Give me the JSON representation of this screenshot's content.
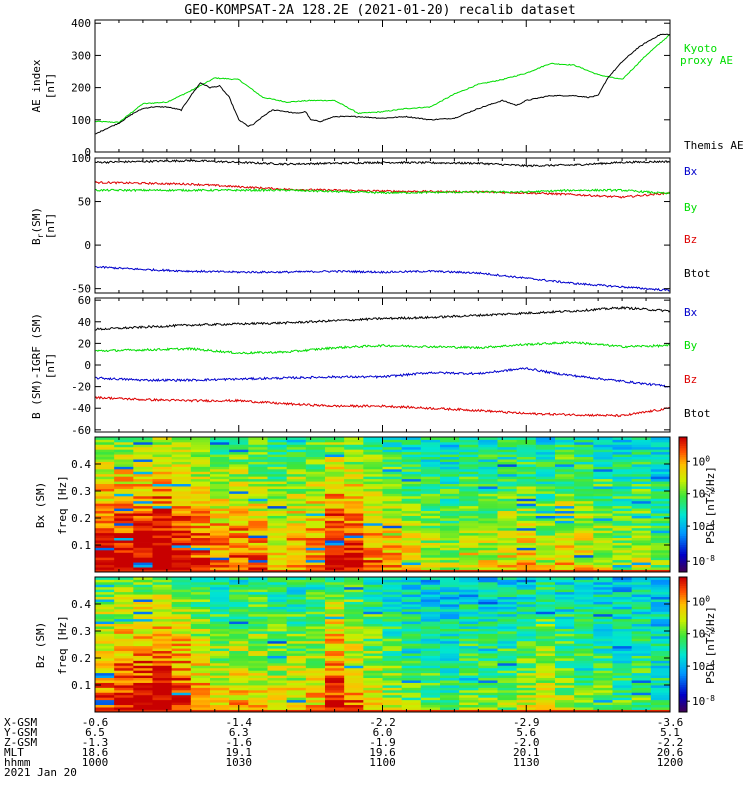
{
  "title": "GEO-KOMPSAT-2A 128.2E (2021-01-20) recalib dataset",
  "colors": {
    "black": "#000000",
    "green": "#00dd00",
    "red": "#dd0000",
    "blue": "#0000cc"
  },
  "chart_data": [
    {
      "type": "line",
      "id": "ae",
      "ylabel": "AE index",
      "yunit": "[nT]",
      "ylim": [
        0,
        410
      ],
      "yticks": [
        0,
        100,
        200,
        300,
        400
      ],
      "series": [
        {
          "name": "Kyoto proxy AE",
          "color": "#00dd00",
          "x": [
            0,
            5,
            10,
            15,
            20,
            25,
            30,
            35,
            40,
            45,
            50,
            55,
            60,
            65,
            70,
            75,
            80,
            85,
            90,
            95,
            100,
            105,
            110,
            115,
            120
          ],
          "y": [
            95,
            92,
            150,
            155,
            190,
            230,
            225,
            170,
            155,
            160,
            160,
            120,
            125,
            135,
            140,
            180,
            210,
            225,
            245,
            275,
            270,
            240,
            225,
            300,
            365
          ]
        },
        {
          "name": "Themis AE",
          "color": "#000000",
          "x": [
            0,
            2,
            5,
            8,
            10,
            12,
            15,
            18,
            20,
            22,
            24,
            26,
            28,
            30,
            32,
            33,
            35,
            37,
            38,
            40,
            42,
            44,
            45,
            47,
            50,
            55,
            60,
            65,
            70,
            75,
            80,
            85,
            88,
            90,
            95,
            100,
            103,
            105,
            107,
            110,
            113,
            115,
            118,
            120
          ],
          "y": [
            55,
            70,
            90,
            120,
            135,
            140,
            140,
            130,
            175,
            215,
            200,
            205,
            170,
            100,
            80,
            85,
            110,
            130,
            130,
            125,
            120,
            125,
            100,
            95,
            110,
            110,
            105,
            110,
            100,
            105,
            135,
            160,
            145,
            160,
            175,
            175,
            170,
            175,
            230,
            280,
            320,
            340,
            365,
            365
          ]
        }
      ]
    },
    {
      "type": "line",
      "id": "bsm",
      "ylabel": "B (SM)",
      "ylabel_sub": "r",
      "yunit": "[nT]",
      "ylim": [
        -55,
        100
      ],
      "yticks": [
        -50,
        0,
        50,
        100
      ],
      "legend": [
        {
          "label": "Bx",
          "color": "#0000cc"
        },
        {
          "label": "By",
          "color": "#00dd00"
        },
        {
          "label": "Bz",
          "color": "#dd0000"
        },
        {
          "label": "Btot",
          "color": "#000000"
        }
      ],
      "series": [
        {
          "name": "Black",
          "color": "#000000",
          "x": [
            0,
            20,
            40,
            60,
            80,
            90,
            100,
            110,
            120
          ],
          "y": [
            95,
            97,
            93,
            95,
            94,
            91,
            92,
            95,
            96
          ]
        },
        {
          "name": "Red",
          "color": "#dd0000",
          "x": [
            0,
            20,
            40,
            60,
            80,
            90,
            100,
            110,
            120
          ],
          "y": [
            72,
            70,
            64,
            62,
            61,
            60,
            58,
            55,
            60
          ]
        },
        {
          "name": "Green",
          "color": "#00dd00",
          "x": [
            0,
            20,
            40,
            60,
            80,
            90,
            100,
            110,
            120
          ],
          "y": [
            63,
            63,
            63,
            60,
            61,
            61,
            63,
            63,
            59
          ]
        },
        {
          "name": "Blue",
          "color": "#0000cc",
          "x": [
            0,
            10,
            20,
            30,
            40,
            50,
            60,
            70,
            80,
            90,
            100,
            110,
            120
          ],
          "y": [
            -25,
            -28,
            -30,
            -31,
            -31,
            -30,
            -31,
            -30,
            -32,
            -38,
            -44,
            -48,
            -52
          ]
        }
      ]
    },
    {
      "type": "line",
      "id": "bres",
      "ylabel": "B (SM)-IGRF (SM)",
      "yunit": "[nT]",
      "ylim": [
        -62,
        62
      ],
      "yticks": [
        -60,
        -40,
        -20,
        0,
        20,
        40,
        60
      ],
      "legend": [
        {
          "label": "Bx",
          "color": "#0000cc"
        },
        {
          "label": "By",
          "color": "#00dd00"
        },
        {
          "label": "Bz",
          "color": "#dd0000"
        },
        {
          "label": "Btot",
          "color": "#000000"
        }
      ],
      "series": [
        {
          "name": "Black",
          "color": "#000000",
          "x": [
            0,
            10,
            20,
            30,
            40,
            50,
            60,
            70,
            80,
            90,
            100,
            110,
            120
          ],
          "y": [
            33,
            35,
            37,
            38,
            39,
            41,
            43,
            44,
            46,
            48,
            50,
            53,
            50
          ]
        },
        {
          "name": "Green",
          "color": "#00dd00",
          "x": [
            0,
            10,
            20,
            30,
            40,
            50,
            60,
            70,
            80,
            90,
            100,
            110,
            120
          ],
          "y": [
            13,
            14,
            15,
            11,
            12,
            16,
            18,
            17,
            16,
            19,
            21,
            17,
            18
          ]
        },
        {
          "name": "Blue",
          "color": "#0000cc",
          "x": [
            0,
            10,
            20,
            30,
            40,
            50,
            60,
            70,
            80,
            90,
            95,
            100,
            110,
            120
          ],
          "y": [
            -12,
            -14,
            -14,
            -13,
            -12,
            -11,
            -11,
            -7,
            -8,
            -3,
            -7,
            -10,
            -15,
            -20
          ]
        },
        {
          "name": "Red",
          "color": "#dd0000",
          "x": [
            0,
            10,
            20,
            30,
            40,
            50,
            60,
            70,
            80,
            90,
            100,
            110,
            120
          ],
          "y": [
            -30,
            -32,
            -33,
            -33,
            -36,
            -38,
            -38,
            -40,
            -42,
            -45,
            -46,
            -47,
            -40
          ]
        }
      ]
    },
    {
      "type": "heatmap",
      "id": "specbx",
      "ylabel": "Bx (SM)",
      "ylabel2": "freq",
      "yunit": "[Hz]",
      "ylim": [
        0,
        0.5
      ],
      "yticks": [
        0.1,
        0.2,
        0.3,
        0.4
      ],
      "ncols": 30,
      "nrows": 55,
      "activity": [
        0.85,
        0.9,
        0.92,
        0.95,
        0.9,
        0.78,
        0.72,
        0.75,
        0.7,
        0.62,
        0.68,
        0.72,
        0.88,
        0.82,
        0.7,
        0.62,
        0.55,
        0.5,
        0.48,
        0.55,
        0.52,
        0.55,
        0.58,
        0.5,
        0.6,
        0.55,
        0.52,
        0.45,
        0.5,
        0.4
      ],
      "cbar_label": "PSD [nT^2/Hz]",
      "cbar_ticks": [
        "10^0",
        "10^-2",
        "10^-4",
        "10^-8"
      ]
    },
    {
      "type": "heatmap",
      "id": "specbz",
      "ylabel": "Bz (SM)",
      "ylabel2": "freq",
      "yunit": "[Hz]",
      "ylim": [
        0,
        0.5
      ],
      "yticks": [
        0.1,
        0.2,
        0.3,
        0.4
      ],
      "ncols": 30,
      "nrows": 55,
      "activity": [
        0.75,
        0.8,
        0.85,
        0.9,
        0.8,
        0.65,
        0.55,
        0.6,
        0.6,
        0.55,
        0.55,
        0.6,
        0.8,
        0.7,
        0.55,
        0.45,
        0.4,
        0.38,
        0.35,
        0.42,
        0.4,
        0.42,
        0.48,
        0.55,
        0.45,
        0.42,
        0.4,
        0.35,
        0.38,
        0.3
      ],
      "cbar_label": "PSD [nT^2/Hz]",
      "cbar_ticks": [
        "10^0",
        "10^-2",
        "10^-4",
        "10^-8"
      ]
    }
  ],
  "ae_legend": {
    "kyoto_line1": "Kyoto",
    "kyoto_line2": "proxy AE",
    "themis": "Themis AE"
  },
  "xaxis": {
    "xlim": [
      0,
      120
    ],
    "ticks": [
      0,
      30,
      60,
      90,
      120
    ],
    "rows": [
      {
        "label": "X-GSM",
        "values": [
          "-0.6",
          "-1.4",
          "-2.2",
          "-2.9",
          "-3.6"
        ]
      },
      {
        "label": "Y-GSM",
        "values": [
          "6.5",
          "6.3",
          "6.0",
          "5.6",
          "5.1"
        ]
      },
      {
        "label": "Z-GSM",
        "values": [
          "-1.3",
          "-1.6",
          "-1.9",
          "-2.0",
          "-2.2"
        ]
      },
      {
        "label": "MLT",
        "values": [
          "18.6",
          "19.1",
          "19.6",
          "20.1",
          "20.6"
        ]
      },
      {
        "label": "hhmm",
        "values": [
          "1000",
          "1030",
          "1100",
          "1130",
          "1200"
        ]
      }
    ],
    "date": "2021 Jan 20"
  }
}
